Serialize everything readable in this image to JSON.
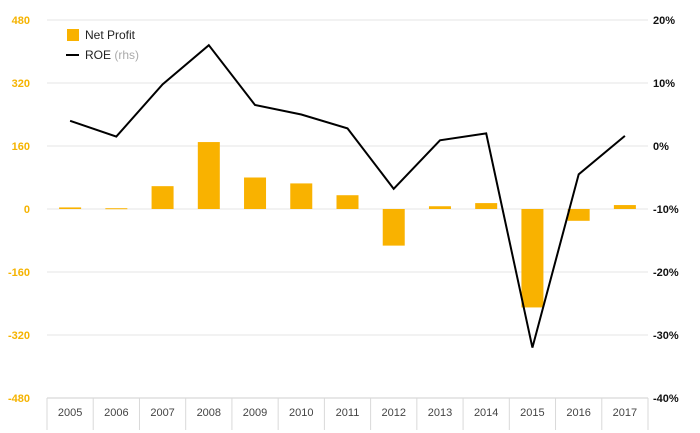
{
  "chart_data": {
    "type": "bar",
    "categories": [
      "2005",
      "2006",
      "2007",
      "2008",
      "2009",
      "2010",
      "2011",
      "2012",
      "2013",
      "2014",
      "2015",
      "2016",
      "2017"
    ],
    "series": [
      {
        "name": "Net Profit",
        "type": "bar",
        "axis": "left",
        "color": "#f9b200",
        "values": [
          4,
          2,
          58,
          170,
          80,
          65,
          35,
          -93,
          7,
          15,
          -250,
          -30,
          10
        ]
      },
      {
        "name": "ROE",
        "name_suffix": "(rhs)",
        "type": "line",
        "axis": "right",
        "color": "#000000",
        "values": [
          4.0,
          1.5,
          9.8,
          16.0,
          6.5,
          5.0,
          2.8,
          -6.8,
          0.9,
          2.0,
          -32.0,
          -4.5,
          1.6
        ]
      }
    ],
    "y_left": {
      "min": -480,
      "max": 480,
      "ticks": [
        480,
        320,
        160,
        0,
        -160,
        -320,
        -480
      ],
      "tick_labels": [
        "480",
        "320",
        "160",
        "0",
        "-160",
        "-320",
        "-480"
      ]
    },
    "y_right": {
      "min": -40,
      "max": 20,
      "ticks": [
        20,
        10,
        0,
        -10,
        -20,
        -30,
        -40
      ],
      "tick_labels": [
        "20%",
        "10%",
        "0%",
        "-10%",
        "-20%",
        "-30%",
        "-40%"
      ]
    },
    "grid": true,
    "legend_position": "top-left",
    "title": "",
    "xlabel": "",
    "ylabel": ""
  }
}
